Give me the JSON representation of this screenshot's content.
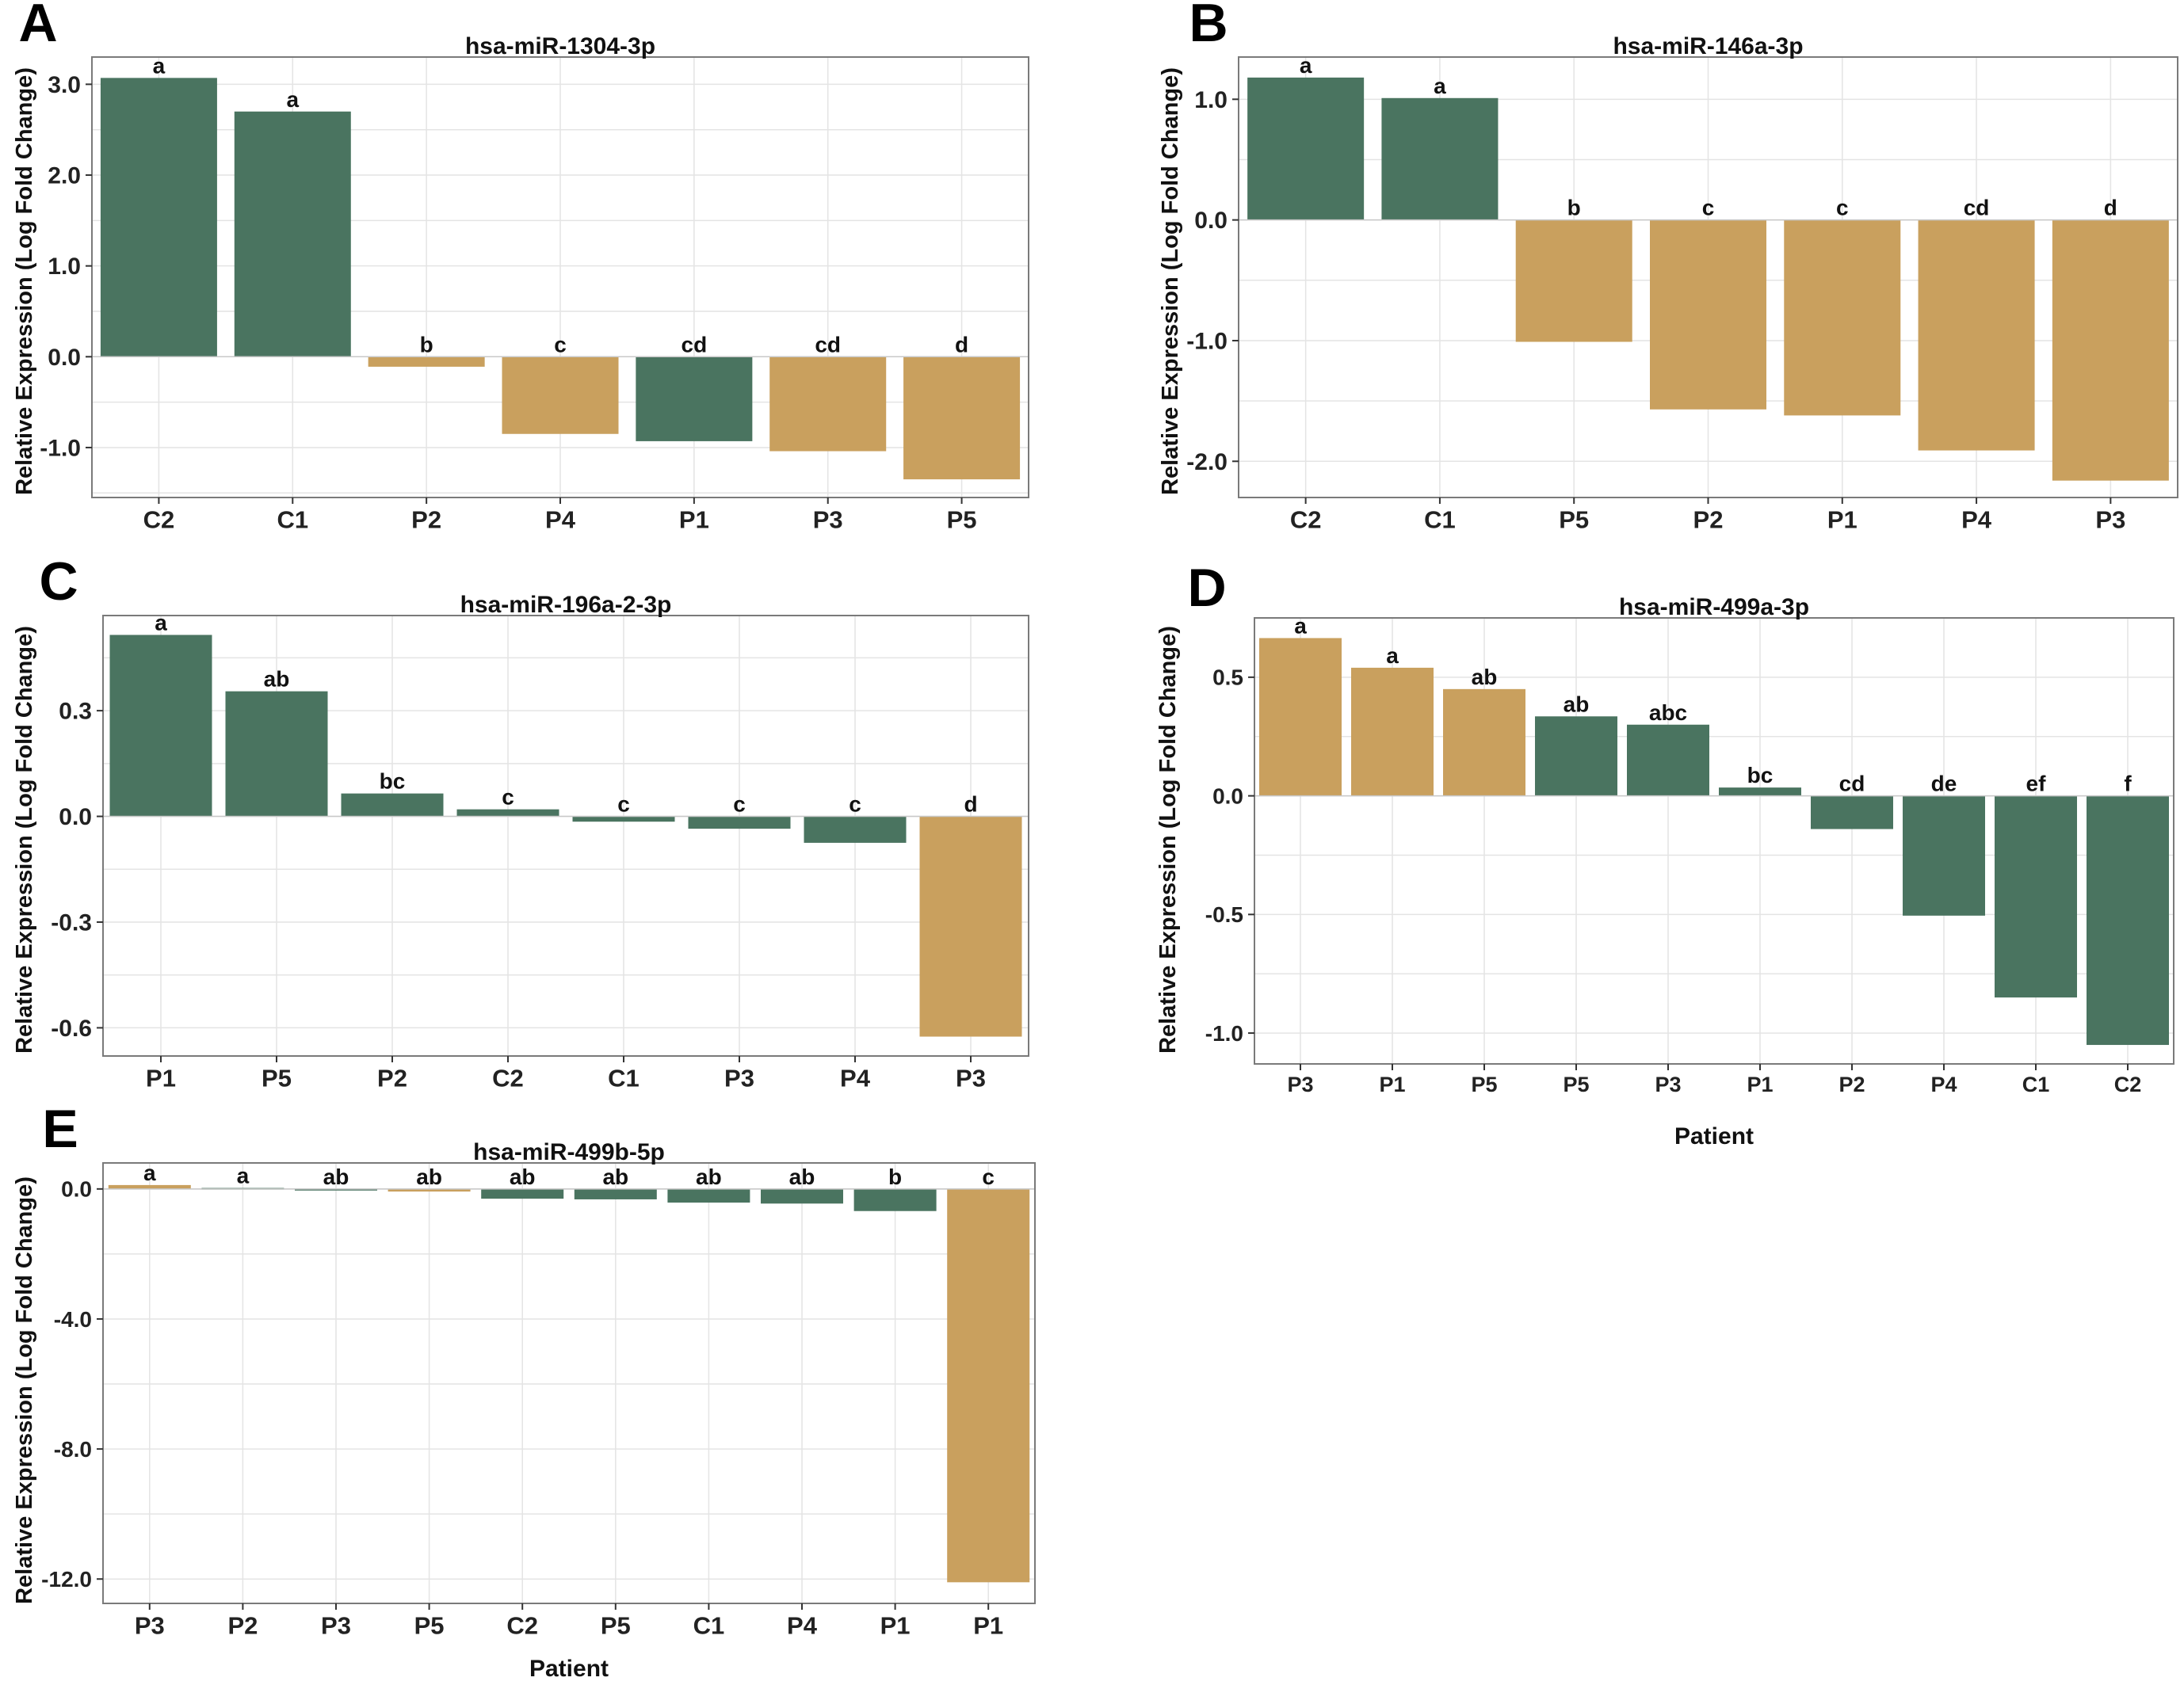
{
  "colors": {
    "control": "#4a7460",
    "patient": "#c9a05e",
    "frame": "#7a7a7a",
    "grid": "#e4e4e4"
  },
  "chart_data": [
    {
      "type": "bar",
      "panel_label": "A",
      "title": "hsa-miR-1304-3p",
      "xlabel": "",
      "ylabel": "Relative Expression (Log Fold Change)",
      "categories": [
        "C2",
        "C1",
        "P2",
        "P4",
        "P1",
        "P3",
        "P5"
      ],
      "values": [
        3.07,
        2.7,
        -0.11,
        -0.85,
        -0.93,
        -1.04,
        -1.35
      ],
      "letters": [
        "a",
        "a",
        "b",
        "c",
        "cd",
        "cd",
        "d"
      ],
      "bar_groups": [
        "control",
        "control",
        "patient",
        "patient",
        "control",
        "patient",
        "patient"
      ],
      "yticks": [
        3.0,
        2.0,
        1.0,
        0.0,
        -1.0
      ],
      "ytick_labels": [
        "3.0",
        "2.0",
        "1.0",
        "0.0",
        "-1.0"
      ],
      "ylim": [
        -1.55,
        3.3
      ]
    },
    {
      "type": "bar",
      "panel_label": "B",
      "title": "hsa-miR-146a-3p",
      "xlabel": "",
      "ylabel": "Relative Expression (Log Fold Change)",
      "categories": [
        "C2",
        "C1",
        "P5",
        "P2",
        "P1",
        "P4",
        "P3"
      ],
      "values": [
        1.18,
        1.01,
        -1.01,
        -1.57,
        -1.62,
        -1.91,
        -2.16
      ],
      "letters": [
        "a",
        "a",
        "b",
        "c",
        "c",
        "cd",
        "d"
      ],
      "bar_groups": [
        "control",
        "control",
        "patient",
        "patient",
        "patient",
        "patient",
        "patient"
      ],
      "yticks": [
        1.0,
        0.0,
        -1.0,
        -2.0
      ],
      "ytick_labels": [
        "1.0",
        "0.0",
        "-1.0",
        "-2.0"
      ],
      "ylim": [
        -2.3,
        1.35
      ]
    },
    {
      "type": "bar",
      "panel_label": "C",
      "title": "hsa-miR-196a-2-3p",
      "xlabel": "",
      "ylabel": "Relative Expression (Log Fold Change)",
      "categories": [
        "P1",
        "P5",
        "P2",
        "C2",
        "C1",
        "P3",
        "P4",
        "P3"
      ],
      "values": [
        0.515,
        0.355,
        0.065,
        0.02,
        -0.015,
        -0.035,
        -0.075,
        -0.625
      ],
      "letters": [
        "a",
        "ab",
        "bc",
        "c",
        "c",
        "c",
        "c",
        "d"
      ],
      "bar_groups": [
        "control",
        "control",
        "control",
        "control",
        "control",
        "control",
        "control",
        "patient"
      ],
      "yticks": [
        0.3,
        0.0,
        -0.3,
        -0.6
      ],
      "ytick_labels": [
        "0.3",
        "0.0",
        "-0.3",
        "-0.6"
      ],
      "ylim": [
        -0.68,
        0.57
      ]
    },
    {
      "type": "bar",
      "panel_label": "D",
      "title": "hsa-miR-499a-3p",
      "xlabel": "Patient",
      "ylabel": "Relative Expression (Log Fold Change)",
      "categories": [
        "P3",
        "P1",
        "P5",
        "P5",
        "P3",
        "P1",
        "P2",
        "P4",
        "C1",
        "C2"
      ],
      "values": [
        0.665,
        0.54,
        0.45,
        0.335,
        0.3,
        0.035,
        -0.14,
        -0.505,
        -0.85,
        -1.05
      ],
      "letters": [
        "a",
        "a",
        "ab",
        "ab",
        "abc",
        "bc",
        "cd",
        "de",
        "ef",
        "f"
      ],
      "bar_groups": [
        "patient",
        "patient",
        "patient",
        "control",
        "control",
        "control",
        "control",
        "control",
        "control",
        "control"
      ],
      "yticks": [
        0.5,
        0.0,
        -0.5,
        -1.0
      ],
      "ytick_labels": [
        "0.5",
        "0.0",
        "-0.5",
        "-1.0"
      ],
      "ylim": [
        -1.13,
        0.75
      ]
    },
    {
      "type": "bar",
      "panel_label": "E",
      "title": "hsa-miR-499b-5p",
      "xlabel": "Patient",
      "ylabel": "Relative Expression (Log Fold Change)",
      "categories": [
        "P3",
        "P2",
        "P3",
        "P5",
        "C2",
        "P5",
        "C1",
        "P4",
        "P1",
        "P1"
      ],
      "values": [
        0.12,
        0.03,
        -0.03,
        -0.08,
        -0.3,
        -0.32,
        -0.42,
        -0.45,
        -0.68,
        -12.1
      ],
      "letters": [
        "a",
        "a",
        "ab",
        "ab",
        "ab",
        "ab",
        "ab",
        "ab",
        "b",
        "c"
      ],
      "bar_groups": [
        "patient",
        "control",
        "control",
        "patient",
        "control",
        "control",
        "control",
        "control",
        "control",
        "patient"
      ],
      "yticks": [
        0.0,
        -4.0,
        -8.0,
        -12.0
      ],
      "ytick_labels": [
        "0.0",
        "-4.0",
        "-8.0",
        "-12.0"
      ],
      "ylim": [
        -12.75,
        0.8
      ]
    }
  ]
}
